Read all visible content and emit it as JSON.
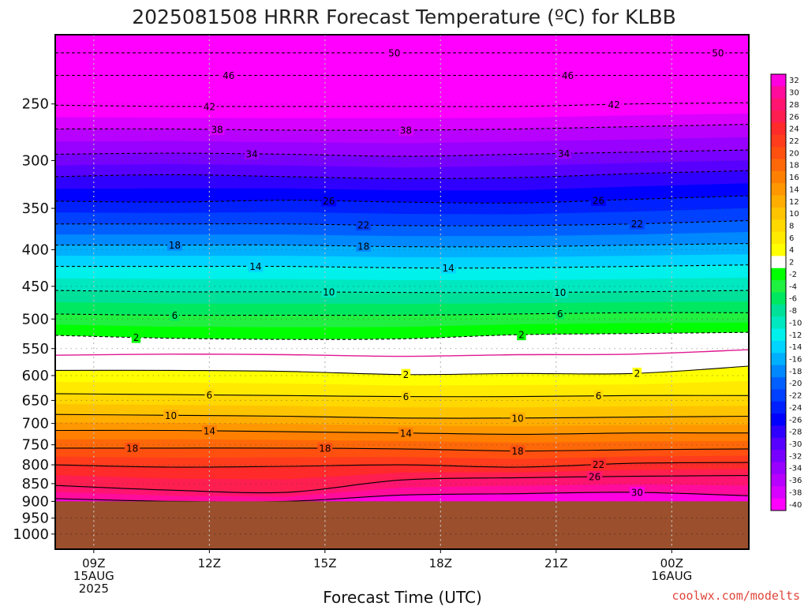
{
  "title": "2025081508 HRRR Forecast Temperature (ºC) for KLBB",
  "credit": "coolwx.com/modelts",
  "colors": {
    "terrain": "#9b4f2c",
    "freezing_line": "#e01890",
    "background": "#ffffff"
  },
  "chart_data": {
    "type": "heatmap",
    "title": "2025081508 HRRR Forecast Temperature (ºC) for KLBB",
    "xlabel": "Forecast Time (UTC)",
    "ylabel": "",
    "y_scale": "log-pressure (hPa), inverted",
    "ylim": [
      1050,
      200
    ],
    "y_ticks": [
      {
        "p": 250,
        "label": "250"
      },
      {
        "p": 300,
        "label": "300"
      },
      {
        "p": 350,
        "label": "350"
      },
      {
        "p": 400,
        "label": "400"
      },
      {
        "p": 450,
        "label": "450"
      },
      {
        "p": 500,
        "label": "500"
      },
      {
        "p": 550,
        "label": "550"
      },
      {
        "p": 600,
        "label": "600"
      },
      {
        "p": 650,
        "label": "650"
      },
      {
        "p": 700,
        "label": "700"
      },
      {
        "p": 750,
        "label": "750"
      },
      {
        "p": 800,
        "label": "800"
      },
      {
        "p": 850,
        "label": "850"
      },
      {
        "p": 900,
        "label": "900"
      },
      {
        "p": 950,
        "label": "950"
      },
      {
        "p": 1000,
        "label": "1000"
      }
    ],
    "xlim": [
      "2025-08-15 08Z",
      "2025-08-16 02Z"
    ],
    "x_ticks": [
      {
        "hour": 9,
        "lines": [
          "09Z",
          "15AUG",
          "2025"
        ]
      },
      {
        "hour": 12,
        "lines": [
          "12Z"
        ]
      },
      {
        "hour": 15,
        "lines": [
          "15Z"
        ]
      },
      {
        "hour": 18,
        "lines": [
          "18Z"
        ]
      },
      {
        "hour": 21,
        "lines": [
          "21Z"
        ]
      },
      {
        "hour": 24,
        "lines": [
          "00Z",
          "16AUG"
        ]
      }
    ],
    "surface_pressure_hPa": 900,
    "colorbar": {
      "units": "ºC",
      "labels": [
        "32",
        "30",
        "28",
        "26",
        "24",
        "22",
        "20",
        "18",
        "16",
        "14",
        "12",
        "10",
        "8",
        "6",
        "4",
        "2",
        "-2",
        "-4",
        "-6",
        "-8",
        "-10",
        "-12",
        "-14",
        "-16",
        "-18",
        "-20",
        "-22",
        "-24",
        "-26",
        "-28",
        "-30",
        "-32",
        "-34",
        "-36",
        "-38",
        "-40"
      ],
      "colors": [
        "#ff00e0",
        "#ff0c9c",
        "#ff1470",
        "#ff1e50",
        "#ff2a2a",
        "#ff3c1c",
        "#ff5010",
        "#ff6808",
        "#ff8000",
        "#ff9800",
        "#ffae00",
        "#ffc400",
        "#ffd800",
        "#ffea00",
        "#ffff00",
        "#ffffff",
        "#00ff00",
        "#20f040",
        "#00e860",
        "#00e098",
        "#00e8c0",
        "#00f0ec",
        "#00d4ff",
        "#00b0ff",
        "#0088ff",
        "#0060ff",
        "#0040ff",
        "#0020ff",
        "#0000ff",
        "#3000ff",
        "#5800ff",
        "#7800ff",
        "#9800ff",
        "#b800ff",
        "#d800ff",
        "#ff00ff"
      ]
    },
    "contours": [
      {
        "level": -50,
        "p": [
          212,
          212,
          212,
          212,
          212,
          212,
          212
        ],
        "labels": [
          16.8,
          25.2
        ]
      },
      {
        "level": -46,
        "p": [
          228,
          228,
          228,
          228,
          228,
          228,
          228
        ],
        "labels": [
          12.5,
          21.3
        ]
      },
      {
        "level": -42,
        "p": [
          251,
          252,
          252,
          252,
          252,
          250,
          249
        ],
        "labels": [
          12,
          22.5
        ]
      },
      {
        "level": -38,
        "p": [
          271,
          271,
          272,
          272,
          271,
          269,
          267
        ],
        "labels": [
          12.2,
          17.1
        ]
      },
      {
        "level": -34,
        "p": [
          294,
          293,
          294,
          296,
          294,
          292,
          290
        ],
        "labels": [
          13.1,
          21.2
        ]
      },
      {
        "level": -30,
        "p": [
          316,
          314,
          316,
          318,
          317,
          313,
          310
        ],
        "labels": []
      },
      {
        "level": -26,
        "p": [
          342,
          343,
          341,
          343,
          344,
          340,
          336
        ],
        "labels": [
          15.1,
          22.1
        ]
      },
      {
        "level": -22,
        "p": [
          368,
          368,
          368,
          370,
          370,
          368,
          364
        ],
        "labels": [
          16,
          23.1
        ]
      },
      {
        "level": -18,
        "p": [
          394,
          394,
          394,
          396,
          396,
          394,
          392
        ],
        "labels": [
          11.1,
          16
        ]
      },
      {
        "level": -14,
        "p": [
          422,
          422,
          422,
          424,
          424,
          422,
          420
        ],
        "labels": [
          13.2,
          18.2
        ]
      },
      {
        "level": -10,
        "p": [
          456,
          458,
          458,
          459,
          459,
          458,
          456
        ],
        "labels": [
          15.1,
          21.1
        ]
      },
      {
        "level": -6,
        "p": [
          492,
          494,
          494,
          494,
          492,
          490,
          490
        ],
        "labels": [
          11.1,
          21.1
        ]
      },
      {
        "level": -2,
        "p": [
          527,
          532,
          534,
          533,
          526,
          524,
          522
        ],
        "labels": [
          10.1,
          20.1
        ]
      },
      {
        "level": 0,
        "p": [
          562,
          560,
          561,
          564,
          561,
          560,
          552
        ],
        "labels": []
      },
      {
        "level": 2,
        "p": [
          590,
          590,
          592,
          598,
          596,
          596,
          582
        ],
        "labels": [
          17.1,
          23.1
        ]
      },
      {
        "level": 6,
        "p": [
          636,
          638,
          640,
          642,
          642,
          640,
          640
        ],
        "labels": [
          12,
          17.1,
          22.1
        ]
      },
      {
        "level": 10,
        "p": [
          680,
          682,
          684,
          688,
          688,
          686,
          684
        ],
        "labels": [
          11,
          20
        ]
      },
      {
        "level": 14,
        "p": [
          716,
          716,
          719,
          722,
          725,
          722,
          722
        ],
        "labels": [
          12,
          17.1
        ]
      },
      {
        "level": 18,
        "p": [
          758,
          758,
          758,
          760,
          765,
          762,
          760
        ],
        "labels": [
          10,
          15,
          20
        ]
      },
      {
        "level": 22,
        "p": [
          800,
          806,
          804,
          800,
          806,
          796,
          794
        ],
        "labels": [
          22.1
        ]
      },
      {
        "level": 26,
        "p": [
          855,
          868,
          874,
          840,
          834,
          830,
          828
        ],
        "labels": [
          22
        ]
      },
      {
        "level": 30,
        "p": [
          892,
          900,
          900,
          882,
          878,
          874,
          884
        ],
        "labels": [
          23.1
        ]
      }
    ],
    "x_sample_hours": [
      8,
      11,
      14,
      17,
      20,
      23,
      26
    ]
  }
}
